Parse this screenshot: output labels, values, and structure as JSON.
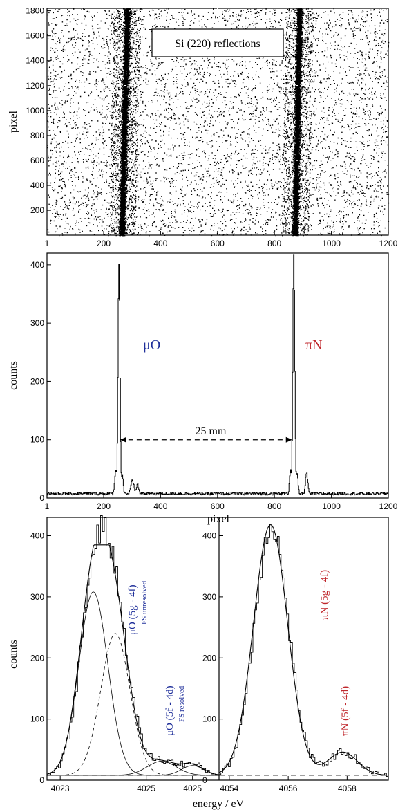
{
  "chart_data": [
    {
      "type": "scatter",
      "title": "Si (220)  reflections",
      "xlabel": "",
      "ylabel": "pixel",
      "xlim": [
        1,
        1200
      ],
      "ylim": [
        1,
        1820
      ],
      "xticks": [
        "1",
        "200",
        "400",
        "600",
        "800",
        "1000",
        "1200"
      ],
      "yticks": [
        "200",
        "400",
        "600",
        "800",
        "1000",
        "1200",
        "1400",
        "1600",
        "1800"
      ],
      "grid": "dashed at x=600 and y=600, 1200",
      "bands": [
        {
          "x_center_bottom": 263,
          "x_center_top": 283,
          "width": 30
        },
        {
          "x_center_bottom": 872,
          "x_center_top": 888,
          "width": 30
        }
      ],
      "background_density": "uniform random hits"
    },
    {
      "type": "line",
      "xlabel": "pixel",
      "ylabel": "counts",
      "xlim": [
        1,
        1200
      ],
      "ylim": [
        0,
        420
      ],
      "xticks": [
        "1",
        "200",
        "400",
        "600",
        "800",
        "1000",
        "1200"
      ],
      "yticks": [
        "0",
        "100",
        "200",
        "300",
        "400"
      ],
      "background_level": 5,
      "peaks": [
        {
          "label": "μO",
          "x": 253,
          "height": 395
        },
        {
          "label": "πN",
          "x": 867,
          "height": 415
        }
      ],
      "annotation": "25 mm",
      "arrow_y": 100,
      "arrow_x": [
        258,
        862
      ]
    },
    {
      "type": "line",
      "xlabel": "energy / eV",
      "ylabel": "counts",
      "ylim": [
        0,
        430
      ],
      "yticks": [
        "0",
        "100",
        "200",
        "300",
        "400"
      ],
      "panels": [
        {
          "name": "left",
          "xticks": [
            "4023",
            "4025",
            "4025"
          ],
          "components": [
            {
              "center": 4023.75,
              "amplitude": 300,
              "sigma": 0.33
            },
            {
              "center": 4024.25,
              "amplitude": 232,
              "sigma": 0.33
            },
            {
              "center": 4025.3,
              "amplitude": 23,
              "sigma": 0.33
            },
            {
              "center": 4026.0,
              "amplitude": 16,
              "sigma": 0.25
            }
          ],
          "total_peak": 375,
          "annotations": [
            {
              "main": "μO (5g - 4f)",
              "sub": "FS unresolved"
            },
            {
              "main": "μO (5f - 4d)",
              "sub": "FS resolved"
            }
          ]
        },
        {
          "name": "right",
          "xticks": [
            "4054",
            "4056",
            "4058"
          ],
          "components": [
            {
              "center": 4055.4,
              "amplitude": 410,
              "sigma": 0.58
            },
            {
              "center": 4057.85,
              "amplitude": 38,
              "sigma": 0.5
            }
          ],
          "annotations": [
            {
              "main": "πN (5g - 4f)"
            },
            {
              "main": "πN (5f - 4d)"
            }
          ]
        }
      ]
    }
  ]
}
